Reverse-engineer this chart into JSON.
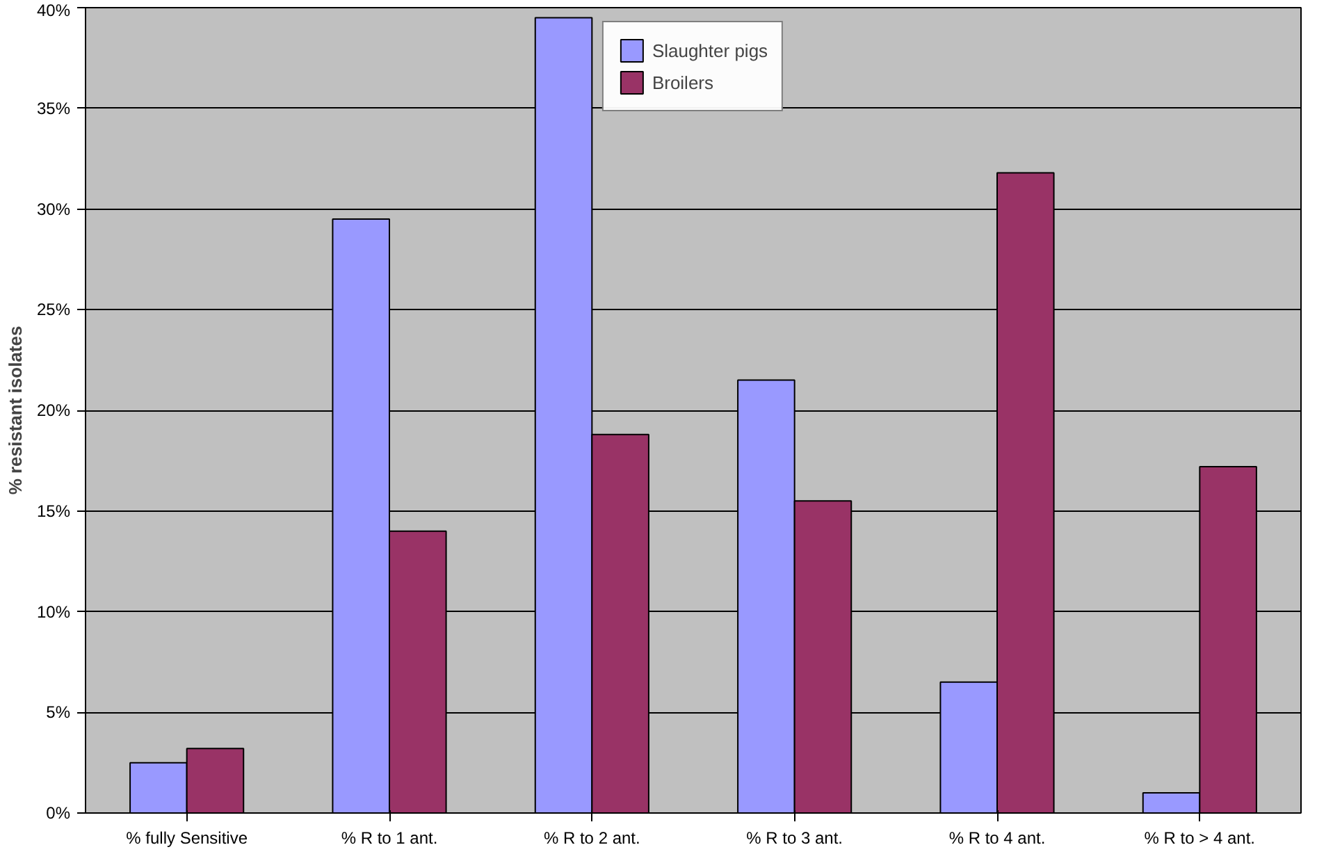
{
  "chart_data": {
    "type": "bar",
    "ylabel": "% resistant isolates",
    "categories": [
      "% fully Sensitive",
      "% R to 1 ant.",
      "% R to 2 ant.",
      "% R to 3 ant.",
      "% R to 4 ant.",
      "% R to > 4 ant."
    ],
    "series": [
      {
        "name": "Slaughter pigs",
        "color": "#9999ff",
        "values": [
          2.5,
          29.5,
          39.5,
          21.5,
          6.5,
          1
        ]
      },
      {
        "name": "Broilers",
        "color": "#993366",
        "values": [
          3.2,
          14,
          18.8,
          15.5,
          31.8,
          17.2
        ]
      }
    ],
    "ylim": [
      0,
      40
    ],
    "yticks": [
      {
        "value": 0,
        "label": "0%"
      },
      {
        "value": 5,
        "label": "5%"
      },
      {
        "value": 10,
        "label": "10%"
      },
      {
        "value": 15,
        "label": "15%"
      },
      {
        "value": 20,
        "label": "20%"
      },
      {
        "value": 25,
        "label": "25%"
      },
      {
        "value": 30,
        "label": "30%"
      },
      {
        "value": 35,
        "label": "35%"
      },
      {
        "value": 40,
        "label": "40%"
      }
    ],
    "grid": "y",
    "legend": "top"
  }
}
